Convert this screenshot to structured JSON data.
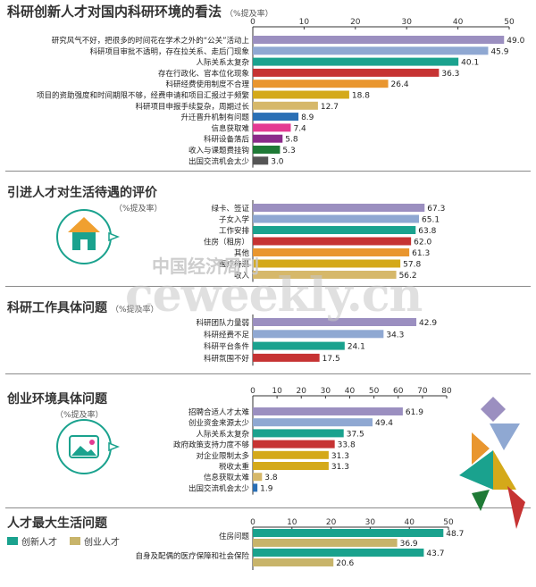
{
  "title": "科研创新人才对国内科研环境的看法",
  "title_sub": "（%提及率）",
  "watermark_en": "ceweekly.cn",
  "watermark_cn": "中国经济周刊",
  "chart_data": [
    {
      "type": "bar",
      "orientation": "horizontal",
      "title": "科研创新人才对国内科研环境的看法",
      "unit": "（%提及率）",
      "xlim": [
        0,
        50
      ],
      "ticks": [
        0,
        10,
        20,
        30,
        40,
        50
      ],
      "categories": [
        "研究风气不好，把很多的时间花在学术之外的“公关”活动上",
        "科研项目审批不透明，存在拉关系、走后门现象",
        "人际关系太复杂",
        "存在行政化、官本位化现象",
        "科研经费使用制度不合理",
        "项目的资助强度和时间期限不够，经费申请和项目汇报过于频繁",
        "科研项目申报手续复杂，周期过长",
        "升迁晋升机制有问题",
        "信息获取难",
        "科研设备落后",
        "收入与课题费挂钩",
        "出国交流机会太少"
      ],
      "values": [
        49.0,
        45.9,
        40.1,
        36.3,
        26.4,
        18.8,
        12.7,
        8.9,
        7.4,
        5.8,
        5.3,
        3.0
      ],
      "value_labels": [
        "49.0",
        "45.9",
        "40.1",
        "36.3",
        "26.4",
        "18.8",
        "12.7",
        "8.9",
        "7.4",
        "5.8",
        "5.3",
        "3.0"
      ],
      "colors": [
        "#9b8fc0",
        "#8fa8d2",
        "#1aa28e",
        "#c63333",
        "#e9962f",
        "#d4a91a",
        "#d6b86a",
        "#2a6fb5",
        "#e43a92",
        "#8b2a8a",
        "#1f7a36",
        "#555555"
      ]
    },
    {
      "type": "bar",
      "orientation": "horizontal",
      "title": "引进人才对生活待遇的评价",
      "unit": "（%提及率）",
      "xlim": [
        0,
        70
      ],
      "ticks": [],
      "categories": [
        "绿卡、签证",
        "子女入学",
        "工作安排",
        "住房（租房）",
        "其他",
        "医疗待遇",
        "收入"
      ],
      "values": [
        67.3,
        65.1,
        63.8,
        62.0,
        61.3,
        57.8,
        56.2
      ],
      "value_labels": [
        "67.3",
        "65.1",
        "63.8",
        "62.0",
        "61.3",
        "57.8",
        "56.2"
      ],
      "colors": [
        "#9b8fc0",
        "#8fa8d2",
        "#1aa28e",
        "#c63333",
        "#e9962f",
        "#d4a91a",
        "#d6b86a"
      ]
    },
    {
      "type": "bar",
      "orientation": "horizontal",
      "title": "科研工作具体问题",
      "unit": "（%提及率）",
      "xlim": [
        0,
        45
      ],
      "ticks": [],
      "categories": [
        "科研团队力量弱",
        "科研经费不足",
        "科研平台条件",
        "科研氛围不好"
      ],
      "values": [
        42.9,
        34.3,
        24.1,
        17.5
      ],
      "value_labels": [
        "42.9",
        "34.3",
        "24.1",
        "17.5"
      ],
      "colors": [
        "#9b8fc0",
        "#8fa8d2",
        "#1aa28e",
        "#c63333"
      ]
    },
    {
      "type": "bar",
      "orientation": "horizontal",
      "title": "创业环境具体问题",
      "unit": "（%提及率）",
      "xlim": [
        0,
        80
      ],
      "ticks": [
        0,
        10,
        20,
        30,
        40,
        50,
        60,
        70,
        80
      ],
      "categories": [
        "招聘合适人才太难",
        "创业资金来源太少",
        "人际关系太复杂",
        "政府政策支持力度不够",
        "对企业限制太多",
        "税收太重",
        "信息获取太难",
        "出国交流机会太少"
      ],
      "values": [
        61.9,
        49.4,
        37.5,
        33.8,
        31.3,
        31.3,
        3.8,
        1.9
      ],
      "value_labels": [
        "61.9",
        "49.4",
        "37.5",
        "33.8",
        "31.3",
        "31.3",
        "3.8",
        "1.9"
      ],
      "colors": [
        "#9b8fc0",
        "#8fa8d2",
        "#1aa28e",
        "#c63333",
        "#d4a91a",
        "#d4a91a",
        "#d6b86a",
        "#2a6fb5"
      ]
    },
    {
      "type": "bar",
      "orientation": "horizontal",
      "title": "人才最大生活问题",
      "xlim": [
        0,
        50
      ],
      "ticks": [
        0,
        10,
        20,
        30,
        40,
        50
      ],
      "categories": [
        "住房问题",
        "自身及配偶的医疗保障和社会保险"
      ],
      "series": [
        {
          "name": "创新人才",
          "values": [
            48.7,
            43.7
          ],
          "color": "#1aa28e"
        },
        {
          "name": "创业人才",
          "values": [
            36.9,
            20.6
          ],
          "color": "#c8b46a"
        }
      ],
      "value_labels": [
        [
          "48.7",
          "43.7"
        ],
        [
          "36.9",
          "20.6"
        ]
      ]
    }
  ]
}
